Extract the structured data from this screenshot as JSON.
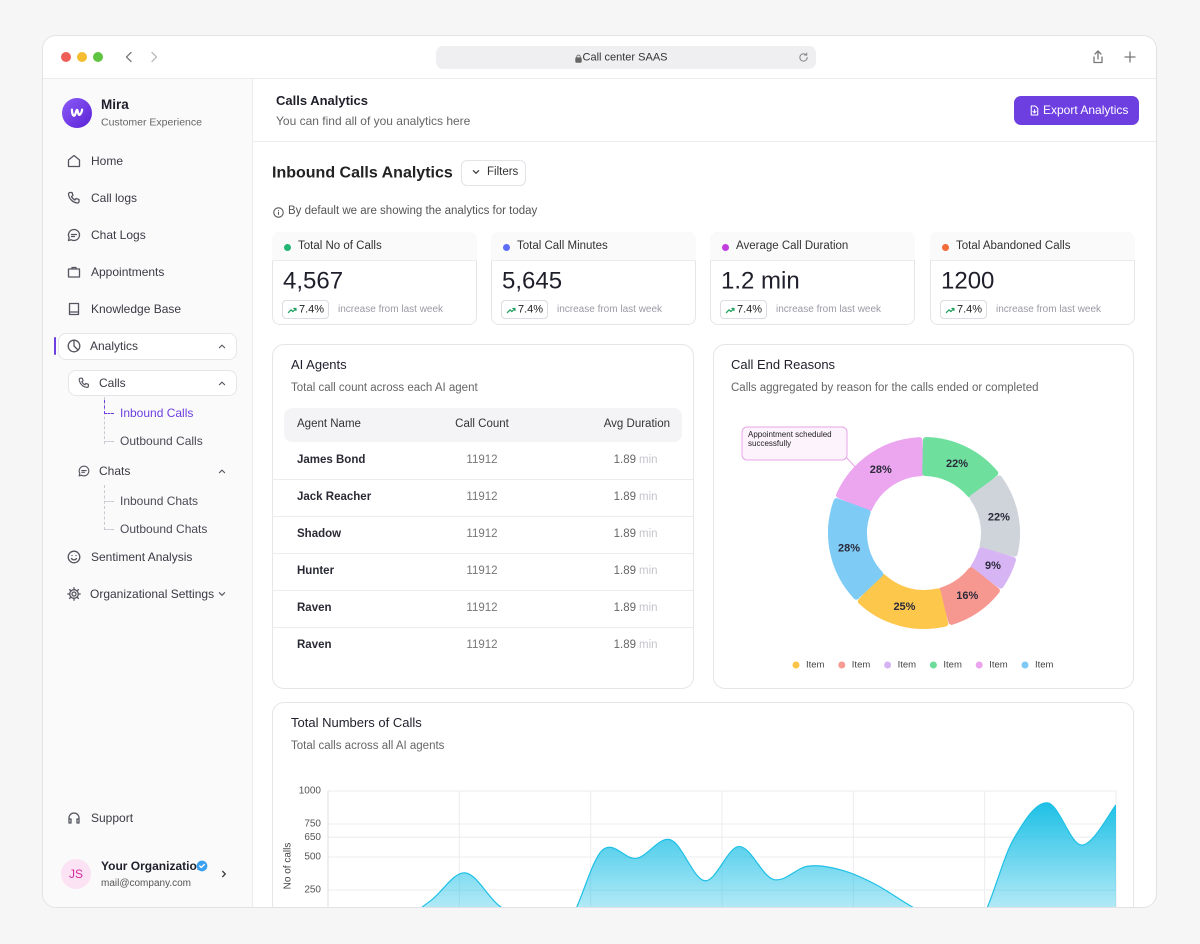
{
  "browser": {
    "url": "Call center SAAS"
  },
  "sidebar": {
    "brand": "Mira",
    "brand_sub": "Customer Experience",
    "nav": [
      "Home",
      "Call logs",
      "Chat Logs",
      "Appointments",
      "Knowledge Base"
    ],
    "analytics": "Analytics",
    "calls": {
      "label": "Calls",
      "items": [
        "Inbound Calls",
        "Outbound Calls"
      ]
    },
    "chats": {
      "label": "Chats",
      "items": [
        "Inbound Chats",
        "Outbound Chats"
      ]
    },
    "more": [
      "Sentiment Analysis",
      "Organizational Settings"
    ],
    "support": "Support",
    "user": {
      "initials": "JS",
      "name": "Your Organization",
      "email": "mail@company.com"
    }
  },
  "header": {
    "title": "Calls Analytics",
    "subtitle": "You can find all of you analytics here",
    "button": "Export Analytics"
  },
  "section": {
    "title": "Inbound Calls Analytics",
    "filters": "Filters",
    "info": "By default we are showing the analytics for today"
  },
  "kpis": [
    {
      "label": "Total No of Calls",
      "value": "4,567",
      "change": "7.4%",
      "note": "increase from last week",
      "color": "#22b573"
    },
    {
      "label": "Total Call Minutes",
      "value": "5,645",
      "change": "7.4%",
      "note": "increase from last week",
      "color": "#5b6ef5"
    },
    {
      "label": "Average Call Duration",
      "value": "1.2 min",
      "change": "7.4%",
      "note": "increase from last week",
      "color": "#c23ce0"
    },
    {
      "label": "Total Abandoned Calls",
      "value": "1200",
      "change": "7.4%",
      "note": "increase from last week",
      "color": "#f26b3a"
    }
  ],
  "agents_table": {
    "title": "AI Agents",
    "subtitle": "Total call count across each AI agent",
    "columns": [
      "Agent Name",
      "Call Count",
      "Avg Duration"
    ],
    "duration_unit": "min",
    "rows": [
      [
        "James Bond",
        11912,
        1.89
      ],
      [
        "Jack Reacher",
        11912,
        1.89
      ],
      [
        "Shadow",
        11912,
        1.89
      ],
      [
        "Hunter",
        11912,
        1.89
      ],
      [
        "Raven",
        11912,
        1.89
      ],
      [
        "Raven",
        11912,
        1.89
      ]
    ]
  },
  "chart_data": [
    {
      "type": "donut",
      "title": "Call End Reasons",
      "subtitle": "Calls aggregated by reason for the calls  ended or completed",
      "values": [
        28,
        22,
        22,
        9,
        16,
        25,
        28
      ],
      "value_labels": [
        "28%",
        "22%",
        "22%",
        "9%",
        "16%",
        "25%",
        "28%"
      ],
      "colors": [
        "#eca6ef",
        "#6fdf9e",
        "#cfd3da",
        "#d7b5f4",
        "#f79890",
        "#fdc74c",
        "#7ecbf6"
      ],
      "annotation": "Appointment scheduled successfully",
      "legend": [
        {
          "name": "Item",
          "color": "#fcc54a"
        },
        {
          "name": "Item",
          "color": "#f79a92"
        },
        {
          "name": "Item",
          "color": "#d5b3f3"
        },
        {
          "name": "Item",
          "color": "#6ddc9a"
        },
        {
          "name": "Item",
          "color": "#eba3ee"
        },
        {
          "name": "Item",
          "color": "#7ec9f5"
        }
      ]
    },
    {
      "type": "area",
      "title": "Total Numbers of Calls",
      "subtitle": "Total calls across all AI agents",
      "y_label": "No of calls",
      "color": "#1ec0e6",
      "values": [
        0,
        0,
        0,
        170,
        380,
        130,
        0,
        0,
        550,
        490,
        630,
        320,
        580,
        330,
        430,
        400,
        290,
        130,
        0,
        0,
        630,
        910,
        590,
        895
      ],
      "ylim": [
        0,
        1000
      ],
      "yticks": [
        250,
        500,
        650,
        750,
        1000
      ],
      "grid": true
    }
  ]
}
